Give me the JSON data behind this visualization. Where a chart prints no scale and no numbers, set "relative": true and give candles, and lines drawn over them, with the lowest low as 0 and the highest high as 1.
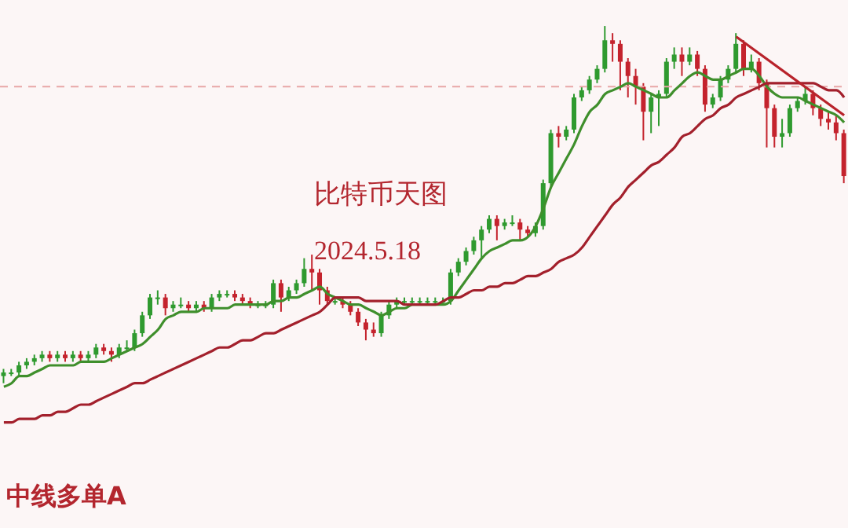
{
  "chart_data": {
    "type": "candlestick",
    "relative": true,
    "title": "比特币天图",
    "subtitle": "2024.5.18",
    "annotations": [
      "中线多单A"
    ],
    "categories": [
      null,
      null,
      null,
      null,
      null,
      null,
      null,
      null,
      null,
      null,
      null,
      null,
      null,
      null,
      null,
      null,
      null,
      null,
      null,
      null,
      null,
      null,
      null,
      null,
      null,
      null,
      null,
      null,
      null,
      null,
      null,
      null,
      null,
      null,
      null,
      null,
      null,
      null,
      null,
      null,
      null,
      null,
      null,
      null,
      null,
      null,
      null,
      null,
      null,
      null,
      null,
      null,
      null,
      null,
      null,
      null,
      null,
      null,
      null,
      null,
      null,
      null,
      null,
      null,
      null,
      null,
      null,
      null,
      null,
      null,
      null,
      null,
      null,
      null,
      null,
      null,
      null,
      null,
      null,
      null,
      null,
      null,
      null,
      null,
      null,
      null,
      null,
      null,
      null,
      null,
      null,
      null,
      null,
      null,
      null,
      null,
      null,
      null,
      null,
      null,
      null,
      null,
      null,
      null,
      null,
      null,
      null,
      null,
      null,
      null
    ],
    "ohlc": [
      [
        0.02,
        0.04,
        0.0,
        0.03
      ],
      [
        0.03,
        0.04,
        0.02,
        0.03
      ],
      [
        0.03,
        0.06,
        0.02,
        0.05
      ],
      [
        0.05,
        0.07,
        0.04,
        0.06
      ],
      [
        0.06,
        0.08,
        0.05,
        0.07
      ],
      [
        0.07,
        0.09,
        0.06,
        0.08
      ],
      [
        0.08,
        0.09,
        0.06,
        0.07
      ],
      [
        0.07,
        0.09,
        0.06,
        0.08
      ],
      [
        0.08,
        0.09,
        0.06,
        0.07
      ],
      [
        0.07,
        0.09,
        0.06,
        0.08
      ],
      [
        0.08,
        0.09,
        0.06,
        0.07
      ],
      [
        0.07,
        0.09,
        0.06,
        0.08
      ],
      [
        0.08,
        0.11,
        0.07,
        0.1
      ],
      [
        0.1,
        0.11,
        0.08,
        0.09
      ],
      [
        0.09,
        0.1,
        0.06,
        0.08
      ],
      [
        0.08,
        0.11,
        0.07,
        0.1
      ],
      [
        0.1,
        0.12,
        0.09,
        0.1
      ],
      [
        0.1,
        0.15,
        0.09,
        0.14
      ],
      [
        0.14,
        0.2,
        0.13,
        0.19
      ],
      [
        0.19,
        0.25,
        0.18,
        0.24
      ],
      [
        0.24,
        0.26,
        0.22,
        0.24
      ],
      [
        0.24,
        0.25,
        0.19,
        0.21
      ],
      [
        0.21,
        0.23,
        0.2,
        0.22
      ],
      [
        0.22,
        0.24,
        0.21,
        0.22
      ],
      [
        0.22,
        0.23,
        0.2,
        0.21
      ],
      [
        0.21,
        0.23,
        0.2,
        0.22
      ],
      [
        0.22,
        0.23,
        0.2,
        0.21
      ],
      [
        0.21,
        0.25,
        0.2,
        0.24
      ],
      [
        0.24,
        0.26,
        0.23,
        0.25
      ],
      [
        0.25,
        0.26,
        0.24,
        0.25
      ],
      [
        0.25,
        0.26,
        0.23,
        0.24
      ],
      [
        0.24,
        0.25,
        0.22,
        0.23
      ],
      [
        0.23,
        0.24,
        0.21,
        0.22
      ],
      [
        0.22,
        0.23,
        0.21,
        0.22
      ],
      [
        0.22,
        0.23,
        0.21,
        0.22
      ],
      [
        0.22,
        0.29,
        0.21,
        0.28
      ],
      [
        0.28,
        0.29,
        0.2,
        0.24
      ],
      [
        0.24,
        0.27,
        0.23,
        0.26
      ],
      [
        0.26,
        0.29,
        0.25,
        0.28
      ],
      [
        0.28,
        0.35,
        0.27,
        0.32
      ],
      [
        0.32,
        0.36,
        0.26,
        0.31
      ],
      [
        0.31,
        0.32,
        0.22,
        0.26
      ],
      [
        0.26,
        0.27,
        0.22,
        0.23
      ],
      [
        0.23,
        0.24,
        0.22,
        0.23
      ],
      [
        0.23,
        0.24,
        0.21,
        0.22
      ],
      [
        0.22,
        0.23,
        0.19,
        0.2
      ],
      [
        0.2,
        0.21,
        0.16,
        0.17
      ],
      [
        0.17,
        0.18,
        0.12,
        0.15
      ],
      [
        0.15,
        0.17,
        0.13,
        0.14
      ],
      [
        0.14,
        0.2,
        0.13,
        0.19
      ],
      [
        0.19,
        0.23,
        0.18,
        0.22
      ],
      [
        0.22,
        0.24,
        0.21,
        0.23
      ],
      [
        0.23,
        0.24,
        0.22,
        0.23
      ],
      [
        0.23,
        0.24,
        0.22,
        0.23
      ],
      [
        0.23,
        0.24,
        0.22,
        0.23
      ],
      [
        0.23,
        0.24,
        0.22,
        0.23
      ],
      [
        0.23,
        0.24,
        0.22,
        0.23
      ],
      [
        0.23,
        0.24,
        0.22,
        0.23
      ],
      [
        0.23,
        0.32,
        0.22,
        0.31
      ],
      [
        0.31,
        0.35,
        0.3,
        0.34
      ],
      [
        0.34,
        0.38,
        0.33,
        0.37
      ],
      [
        0.37,
        0.41,
        0.36,
        0.4
      ],
      [
        0.4,
        0.44,
        0.35,
        0.43
      ],
      [
        0.43,
        0.47,
        0.42,
        0.46
      ],
      [
        0.46,
        0.47,
        0.4,
        0.44
      ],
      [
        0.44,
        0.46,
        0.43,
        0.45
      ],
      [
        0.45,
        0.47,
        0.44,
        0.45
      ],
      [
        0.45,
        0.46,
        0.4,
        0.43
      ],
      [
        0.43,
        0.44,
        0.41,
        0.42
      ],
      [
        0.42,
        0.45,
        0.41,
        0.44
      ],
      [
        0.44,
        0.57,
        0.43,
        0.56
      ],
      [
        0.56,
        0.71,
        0.55,
        0.7
      ],
      [
        0.7,
        0.72,
        0.66,
        0.69
      ],
      [
        0.69,
        0.72,
        0.68,
        0.71
      ],
      [
        0.71,
        0.81,
        0.7,
        0.8
      ],
      [
        0.8,
        0.83,
        0.79,
        0.82
      ],
      [
        0.82,
        0.86,
        0.81,
        0.85
      ],
      [
        0.85,
        0.89,
        0.84,
        0.88
      ],
      [
        0.88,
        1.0,
        0.87,
        0.96
      ],
      [
        0.96,
        0.98,
        0.9,
        0.95
      ],
      [
        0.95,
        0.96,
        0.82,
        0.9
      ],
      [
        0.9,
        0.91,
        0.8,
        0.86
      ],
      [
        0.86,
        0.88,
        0.78,
        0.83
      ],
      [
        0.83,
        0.84,
        0.68,
        0.76
      ],
      [
        0.76,
        0.81,
        0.7,
        0.8
      ],
      [
        0.8,
        0.82,
        0.72,
        0.81
      ],
      [
        0.81,
        0.91,
        0.8,
        0.9
      ],
      [
        0.9,
        0.94,
        0.88,
        0.92
      ],
      [
        0.92,
        0.94,
        0.86,
        0.9
      ],
      [
        0.9,
        0.94,
        0.89,
        0.92
      ],
      [
        0.92,
        0.93,
        0.86,
        0.88
      ],
      [
        0.88,
        0.89,
        0.76,
        0.78
      ],
      [
        0.78,
        0.81,
        0.77,
        0.8
      ],
      [
        0.8,
        0.86,
        0.79,
        0.85
      ],
      [
        0.85,
        0.89,
        0.84,
        0.88
      ],
      [
        0.88,
        0.98,
        0.87,
        0.95
      ],
      [
        0.95,
        0.96,
        0.86,
        0.88
      ],
      [
        0.88,
        0.92,
        0.87,
        0.9
      ],
      [
        0.9,
        0.91,
        0.82,
        0.84
      ],
      [
        0.84,
        0.85,
        0.66,
        0.77
      ],
      [
        0.77,
        0.78,
        0.66,
        0.69
      ],
      [
        0.69,
        0.74,
        0.66,
        0.7
      ],
      [
        0.7,
        0.78,
        0.69,
        0.77
      ],
      [
        0.77,
        0.8,
        0.76,
        0.79
      ],
      [
        0.79,
        0.83,
        0.78,
        0.81
      ],
      [
        0.81,
        0.82,
        0.75,
        0.77
      ],
      [
        0.77,
        0.78,
        0.72,
        0.74
      ],
      [
        0.74,
        0.76,
        0.71,
        0.73
      ],
      [
        0.73,
        0.75,
        0.68,
        0.7
      ],
      [
        0.7,
        0.71,
        0.56,
        0.58
      ]
    ],
    "series": [
      {
        "type": "line",
        "color": "#3f8f2c",
        "values": [
          -0.01,
          0.0,
          0.02,
          0.02,
          0.03,
          0.04,
          0.05,
          0.05,
          0.05,
          0.05,
          0.06,
          0.06,
          0.06,
          0.06,
          0.07,
          0.08,
          0.09,
          0.1,
          0.11,
          0.13,
          0.15,
          0.18,
          0.19,
          0.2,
          0.2,
          0.2,
          0.21,
          0.21,
          0.21,
          0.21,
          0.22,
          0.22,
          0.22,
          0.22,
          0.22,
          0.23,
          0.23,
          0.24,
          0.24,
          0.25,
          0.26,
          0.27,
          0.25,
          0.24,
          0.23,
          0.22,
          0.22,
          0.21,
          0.2,
          0.19,
          0.2,
          0.21,
          0.21,
          0.22,
          0.22,
          0.22,
          0.22,
          0.22,
          0.23,
          0.26,
          0.29,
          0.32,
          0.35,
          0.37,
          0.38,
          0.39,
          0.4,
          0.4,
          0.41,
          0.44,
          0.49,
          0.55,
          0.59,
          0.63,
          0.67,
          0.72,
          0.76,
          0.78,
          0.81,
          0.82,
          0.83,
          0.84,
          0.83,
          0.82,
          0.81,
          0.8,
          0.8,
          0.82,
          0.84,
          0.86,
          0.87,
          0.86,
          0.85,
          0.85,
          0.86,
          0.87,
          0.88,
          0.88,
          0.86,
          0.83,
          0.81,
          0.8,
          0.8,
          0.8,
          0.79,
          0.78,
          0.77,
          0.76,
          0.75,
          0.73
        ]
      },
      {
        "type": "line",
        "color": "#a3202c",
        "values": [
          -0.11,
          -0.11,
          -0.1,
          -0.1,
          -0.1,
          -0.09,
          -0.09,
          -0.08,
          -0.08,
          -0.07,
          -0.06,
          -0.06,
          -0.05,
          -0.04,
          -0.03,
          -0.02,
          -0.01,
          0.0,
          0.0,
          0.01,
          0.02,
          0.03,
          0.04,
          0.05,
          0.06,
          0.07,
          0.08,
          0.09,
          0.1,
          0.1,
          0.11,
          0.12,
          0.12,
          0.13,
          0.14,
          0.14,
          0.15,
          0.16,
          0.17,
          0.18,
          0.19,
          0.2,
          0.22,
          0.24,
          0.24,
          0.24,
          0.24,
          0.23,
          0.23,
          0.23,
          0.23,
          0.23,
          0.22,
          0.22,
          0.22,
          0.22,
          0.22,
          0.23,
          0.24,
          0.24,
          0.25,
          0.26,
          0.26,
          0.27,
          0.27,
          0.28,
          0.28,
          0.29,
          0.3,
          0.3,
          0.31,
          0.32,
          0.34,
          0.35,
          0.36,
          0.38,
          0.41,
          0.44,
          0.47,
          0.5,
          0.52,
          0.55,
          0.57,
          0.59,
          0.61,
          0.62,
          0.64,
          0.66,
          0.69,
          0.7,
          0.72,
          0.74,
          0.75,
          0.77,
          0.78,
          0.8,
          0.81,
          0.82,
          0.83,
          0.84,
          0.84,
          0.84,
          0.84,
          0.84,
          0.84,
          0.84,
          0.83,
          0.82,
          0.82,
          0.8
        ]
      },
      {
        "type": "line",
        "color": "#b8232b",
        "values": [
          null,
          null,
          null,
          null,
          null,
          null,
          null,
          null,
          null,
          null,
          null,
          null,
          null,
          null,
          null,
          null,
          null,
          null,
          null,
          null,
          null,
          null,
          null,
          null,
          null,
          null,
          null,
          null,
          null,
          null,
          null,
          null,
          null,
          null,
          null,
          null,
          null,
          null,
          null,
          null,
          null,
          null,
          null,
          null,
          null,
          null,
          null,
          null,
          null,
          null,
          null,
          null,
          null,
          null,
          null,
          null,
          null,
          null,
          null,
          null,
          null,
          null,
          null,
          null,
          null,
          null,
          null,
          null,
          null,
          null,
          null,
          null,
          null,
          null,
          null,
          null,
          null,
          null,
          null,
          null,
          null,
          null,
          null,
          null,
          null,
          null,
          null,
          null,
          null,
          null,
          null,
          null,
          null,
          null,
          null,
          0.97,
          null,
          null,
          null,
          null,
          null,
          null,
          null,
          null,
          null,
          null,
          null,
          null,
          null,
          0.75
        ]
      }
    ],
    "ref_lines": [
      {
        "axis": "y",
        "value": 0.83,
        "color": "#e8a7a7",
        "line_style": "dashed"
      }
    ]
  }
}
